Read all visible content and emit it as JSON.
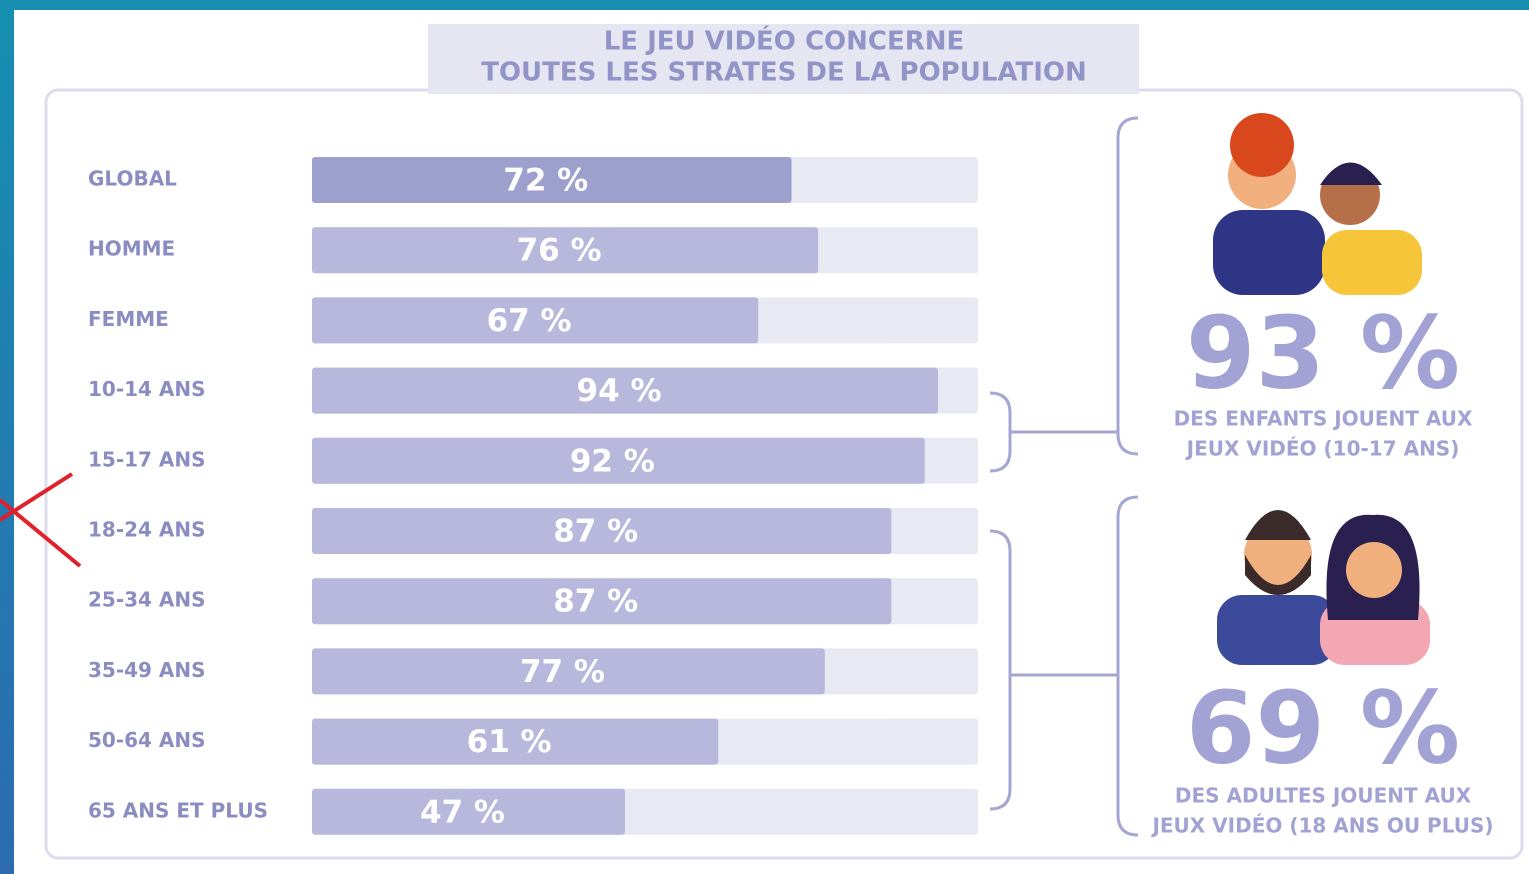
{
  "chart_data": {
    "type": "bar",
    "title": [
      "LE JEU VIDÉO CONCERNE",
      "TOUTES LES STRATES DE LA POPULATION"
    ],
    "categories": [
      "GLOBAL",
      "HOMME",
      "FEMME",
      "10-14 ANS",
      "15-17 ANS",
      "18-24 ANS",
      "25-34 ANS",
      "35-49 ANS",
      "50-64 ANS",
      "65 ANS ET PLUS"
    ],
    "values": [
      72,
      76,
      67,
      94,
      92,
      87,
      87,
      77,
      61,
      47
    ],
    "value_labels": [
      "72 %",
      "76 %",
      "67 %",
      "94 %",
      "92 %",
      "87 %",
      "87 %",
      "77 %",
      "61 %",
      "47 %"
    ],
    "colors": [
      "#9d9fcd",
      "#b8b8dc",
      "#b8b8dc",
      "#b8b8dc",
      "#b8b8dc",
      "#b8b8dc",
      "#b8b8dc",
      "#b8b8dc",
      "#b8b8dc",
      "#b8b8dc"
    ],
    "track_color": "#e9e9f4",
    "xlim": [
      0,
      100
    ],
    "annotations": [
      {
        "label": "93 %",
        "text": [
          "DES ENFANTS JOUENT AUX",
          "JEUX VIDÉO (10-17 ANS)"
        ]
      },
      {
        "label": "69 %",
        "text": [
          "DES ADULTES JOUENT AUX",
          "JEUX VIDÉO (18 ANS OU PLUS)"
        ]
      }
    ]
  }
}
